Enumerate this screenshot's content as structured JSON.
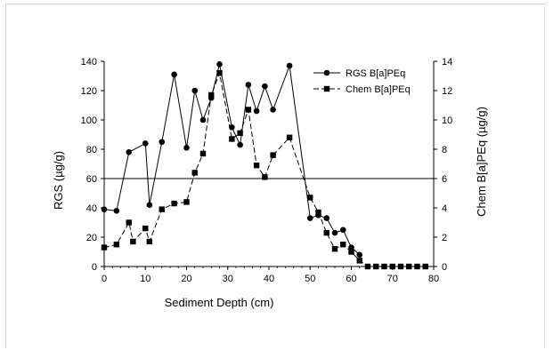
{
  "chart_data": {
    "type": "line",
    "title": "",
    "xlabel": "Sediment Depth (cm)",
    "ylabel_left": "RGS (µg/g)",
    "ylabel_right": "Chem B[a]PEq (µg/g)",
    "xlim": [
      0,
      80
    ],
    "ylim_left": [
      0,
      140
    ],
    "ylim_right": [
      0,
      14
    ],
    "x_ticks": [
      "0",
      "10",
      "20",
      "30",
      "40",
      "50",
      "60",
      "70",
      "80"
    ],
    "y_ticks_left": [
      "0",
      "20",
      "40",
      "60",
      "80",
      "100",
      "120",
      "140"
    ],
    "y_ticks_right": [
      "0",
      "2",
      "4",
      "6",
      "8",
      "10",
      "12",
      "14"
    ],
    "reference_line": {
      "axis": "left",
      "value": 60
    },
    "legend_position": "top-right",
    "grid": false,
    "series": [
      {
        "name": "RGS B[a]PEq",
        "axis": "left",
        "marker": "circle",
        "line": "solid",
        "x": [
          0,
          3,
          6,
          10,
          11,
          14,
          17,
          20,
          22,
          24,
          26,
          28,
          31,
          33,
          35,
          37,
          39,
          41,
          45,
          50,
          52,
          54,
          56,
          58,
          60,
          62
        ],
        "y": [
          39,
          38,
          78,
          84,
          42,
          85,
          131,
          81,
          120,
          100,
          115,
          138,
          95,
          83,
          124,
          106,
          123,
          107,
          137,
          33,
          35,
          33,
          23,
          25,
          13,
          8
        ]
      },
      {
        "name": "Chem B[a]PEq",
        "axis": "right",
        "marker": "square",
        "line": "dashed",
        "x": [
          0,
          3,
          6,
          7,
          10,
          11,
          14,
          17,
          20,
          22,
          24,
          26,
          28,
          31,
          33,
          35,
          37,
          39,
          41,
          45,
          50,
          52,
          54,
          56,
          58,
          60,
          62,
          64,
          66,
          68,
          70,
          72,
          74,
          76,
          78
        ],
        "y": [
          1.3,
          1.5,
          3.0,
          1.7,
          2.6,
          1.7,
          3.9,
          4.3,
          4.4,
          6.4,
          7.7,
          11.7,
          13.2,
          8.7,
          9.1,
          10.7,
          6.9,
          6.1,
          7.6,
          8.8,
          4.7,
          3.7,
          2.3,
          1.2,
          1.5,
          1.0,
          0.4,
          0,
          0,
          0,
          0,
          0,
          0,
          0,
          0
        ]
      }
    ]
  }
}
